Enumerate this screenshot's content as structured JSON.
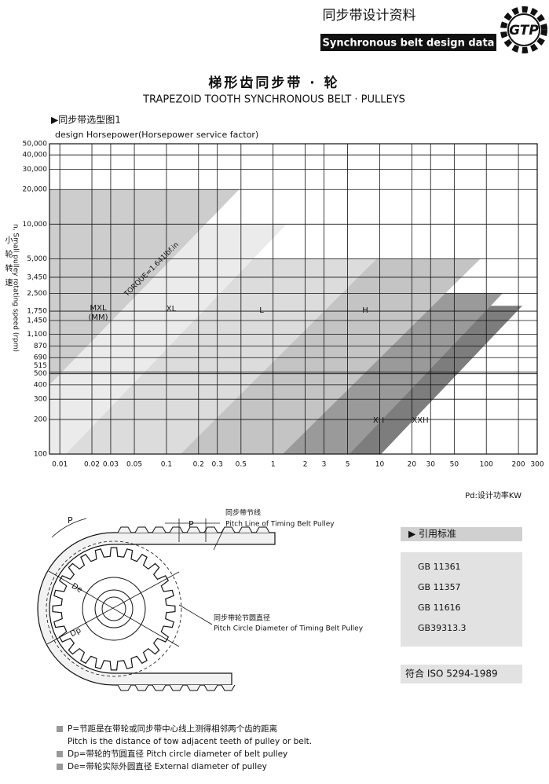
{
  "header": {
    "title": "同步带设计资料",
    "subtitle": "Synchronous belt design data",
    "logo": "GTP"
  },
  "page_title": {
    "cn": "梯形齿同步带 · 轮",
    "en": "TRAPEZOID TOOTH SYNCHRONOUS BELT · PULLEYS"
  },
  "chart_data": {
    "type": "area",
    "title": "▶同步带选型图1",
    "subtitle": "design Horsepower(Horsepower service factor)",
    "y_label_cn": "小轮转速",
    "y_label": "n, Small pulley rotating speed (rpm)",
    "x_label": "Pd:设计功率KW",
    "annotation": "TORQUE=1.641lbf.in",
    "x_log": true,
    "y_log": true,
    "grid": true,
    "xlim": [
      0.008,
      300
    ],
    "ylim": [
      100,
      50000
    ],
    "xticks": [
      0.01,
      0.02,
      0.03,
      0.05,
      0.1,
      0.2,
      0.3,
      0.5,
      1,
      2,
      3,
      5,
      10,
      20,
      30,
      50,
      100,
      200,
      300
    ],
    "yticks": [
      100,
      200,
      300,
      400,
      500,
      515,
      690,
      870,
      {
        "value": 1100,
        "label": "1,100"
      },
      {
        "value": 1450,
        "label": "1,450"
      },
      {
        "value": 1750,
        "label": "1,750"
      },
      {
        "value": 2500,
        "label": "2,500"
      },
      {
        "value": 3450,
        "label": "3,450"
      },
      {
        "value": 5000,
        "label": "5,000"
      },
      {
        "value": 10000,
        "label": "10,000"
      },
      {
        "value": 20000,
        "label": "20,000"
      },
      {
        "value": 30000,
        "label": "30,000"
      },
      {
        "value": 40000,
        "label": "40,000"
      },
      {
        "value": 50000,
        "label": "50,000"
      }
    ],
    "series": [
      {
        "name": "XXH",
        "color": "#7d7d7d",
        "x": [
          0.008,
          217,
          10.3,
          0.008
        ],
        "values": [
          1950,
          1950,
          100,
          100
        ]
      },
      {
        "name": "XH",
        "color": "#9a9a9a",
        "x": [
          0.008,
          142,
          5.2,
          0.008
        ],
        "values": [
          2500,
          2500,
          100,
          100
        ]
      },
      {
        "name": "H",
        "color": "#c4c4c4",
        "x": [
          0.008,
          88,
          1.23,
          0.008
        ],
        "values": [
          5000,
          5000,
          100,
          100
        ]
      },
      {
        "name": "L",
        "color": "#dcdcdc",
        "x": [
          0.008,
          9.4,
          0.136,
          0.008
        ],
        "values": [
          5000,
          5000,
          100,
          100
        ]
      },
      {
        "name": "XL",
        "color": "#ebebeb",
        "x": [
          0.008,
          1.34,
          0.0114,
          0.008
        ],
        "values": [
          10000,
          10000,
          100,
          100
        ]
      },
      {
        "name": "MXL (MM)",
        "color": "#cdcdcd",
        "x": [
          0.008,
          0.48,
          0.008
        ],
        "values": [
          20000,
          20000,
          400
        ]
      }
    ]
  },
  "diagram": {
    "pitch_label_1": "P",
    "pitch_label_2": "P",
    "pitch_line_cn": "同步带节线",
    "pitch_line_en": "Pitch Line of Timing Belt Pulley",
    "pitch_circle_cn": "同步带轮节圆直径",
    "pitch_circle_en": "Pitch Circle Diameter of Timing Belt Pulley",
    "de": "De",
    "dp": "Dp"
  },
  "standards": {
    "heading": "▶ 引用标准",
    "items": [
      "GB 11361",
      "GB 11357",
      "GB 11616",
      "GB39313.3"
    ],
    "conformity": "符合 ISO 5294-1989"
  },
  "notes": [
    "P=节距是在带轮或同步带中心线上测得相邻两个齿的距离",
    "Pitch is the distance of tow adjacent teeth of pulley or belt.",
    "Dp=带轮的节圆直径  Pitch circle diameter of belt pulley",
    "De=带轮实际外圆直径  External diameter of pulley"
  ]
}
